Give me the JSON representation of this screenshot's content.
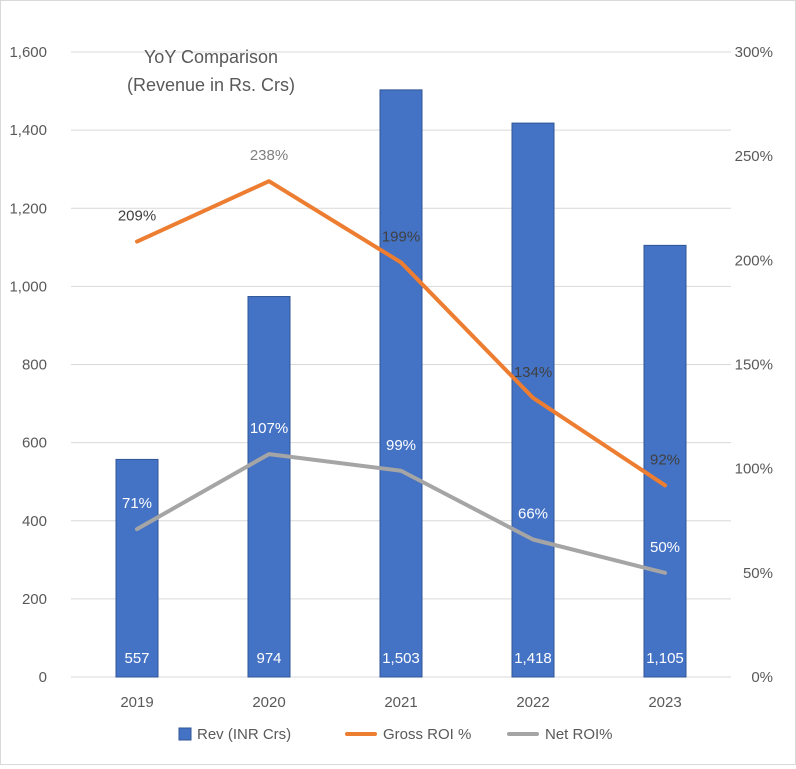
{
  "chart_data": {
    "type": "bar",
    "title": "YoY Comparison",
    "subtitle": "(Revenue in Rs. Crs)",
    "categories": [
      "2019",
      "2020",
      "2021",
      "2022",
      "2023"
    ],
    "y_left": {
      "ylim": [
        0,
        1600
      ],
      "ticks": [
        "0",
        "200",
        "400",
        "600",
        "800",
        "1,000",
        "1,200",
        "1,400",
        "1,600"
      ],
      "tick_values": [
        0,
        200,
        400,
        600,
        800,
        1000,
        1200,
        1400,
        1600
      ]
    },
    "y_right": {
      "ylim": [
        0,
        300
      ],
      "ticks": [
        "0%",
        "50%",
        "100%",
        "150%",
        "200%",
        "250%",
        "300%"
      ],
      "tick_values": [
        0,
        50,
        100,
        150,
        200,
        250,
        300
      ]
    },
    "series": [
      {
        "name": "Rev (INR Crs)",
        "type": "bar",
        "axis": "left",
        "color": "#4472C4",
        "values": [
          557,
          974,
          1503,
          1418,
          1105
        ],
        "labels": [
          "557",
          "974",
          "1,503",
          "1,418",
          "1,105"
        ]
      },
      {
        "name": "Gross ROI %",
        "type": "line",
        "axis": "right",
        "color": "#ED7D31",
        "values": [
          209,
          238,
          199,
          134,
          92
        ],
        "labels": [
          "209%",
          "238%",
          "199%",
          "134%",
          "92%"
        ]
      },
      {
        "name": "Net ROI%",
        "type": "line",
        "axis": "right",
        "color": "#A5A5A5",
        "values": [
          71,
          107,
          99,
          66,
          50
        ],
        "labels": [
          "71%",
          "107%",
          "99%",
          "66%",
          "50%"
        ]
      }
    ],
    "grid": true,
    "legend": "bottom"
  }
}
